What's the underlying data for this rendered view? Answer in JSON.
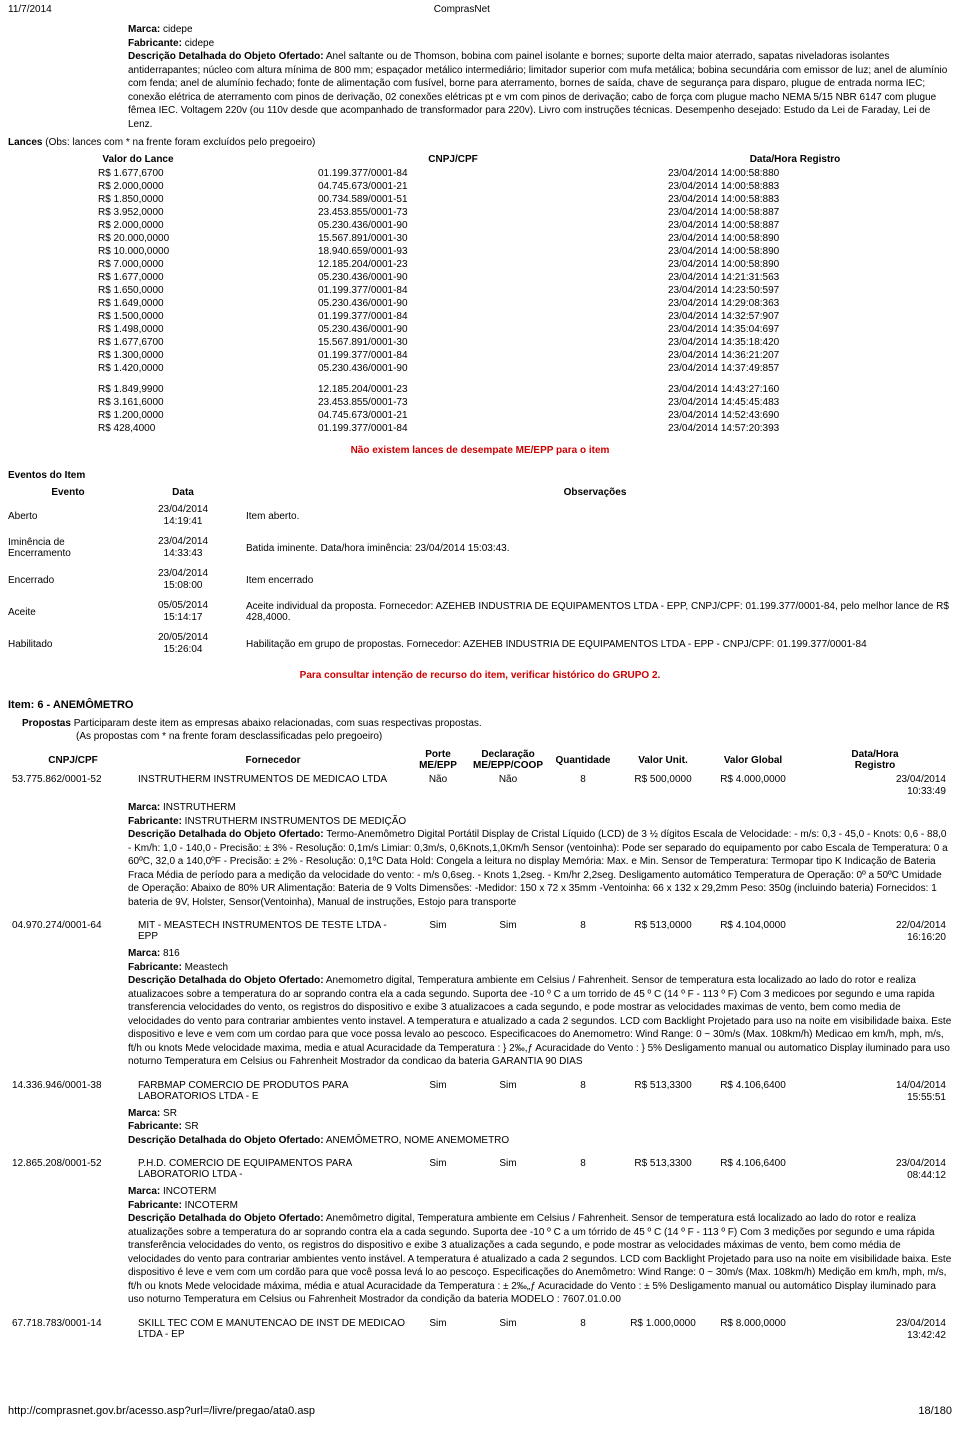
{
  "header": {
    "date": "11/7/2014",
    "title": "ComprasNet"
  },
  "marca_top": {
    "marca_lbl": "Marca:",
    "marca_val": "cidepe",
    "fab_lbl": "Fabricante:",
    "fab_val": "cidepe",
    "desc_lbl": "Descrição Detalhada do Objeto Ofertado:",
    "desc_val": "Anel saltante ou de Thomson, bobina com painel isolante e bornes; suporte delta maior aterrado, sapatas niveladoras isolantes antiderrapantes; núcleo com altura mínima de 800 mm; espaçador metálico intermediário; limitador superior com mufa metálica; bobina secundária com emissor de luz; anel de alumínio com fenda; anel de alumínio fechado; fonte de alimentação com fusível, borne para aterramento, bornes de saída, chave de segurança para disparo, plugue de entrada norma IEC; conexão elétrica de aterramento com pinos de derivação, 02 conexões elétricas pt e vm com pinos de derivação; cabo de força com plugue macho NEMA 5/15 NBR 6147 com plugue fêmea IEC. Voltagem 220v (ou 110v desde que acompanhado de transformador para 220v). Livro com instruções técnicas. Desempenho desejado: Estudo da Lei de Faraday, Lei de Lenz."
  },
  "lances": {
    "title": "Lances ",
    "sub": "(Obs: lances com * na frente foram excluídos pelo pregoeiro)",
    "hdr_valor": "Valor do Lance",
    "hdr_cnpj": "CNPJ/CPF",
    "hdr_dh": "Data/Hora Registro",
    "rows": [
      {
        "v": "R$ 1.677,6700",
        "c": "01.199.377/0001-84",
        "d": "23/04/2014 14:00:58:880"
      },
      {
        "v": "R$ 2.000,0000",
        "c": "04.745.673/0001-21",
        "d": "23/04/2014 14:00:58:883"
      },
      {
        "v": "R$ 1.850,0000",
        "c": "00.734.589/0001-51",
        "d": "23/04/2014 14:00:58:883"
      },
      {
        "v": "R$ 3.952,0000",
        "c": "23.453.855/0001-73",
        "d": "23/04/2014 14:00:58:887"
      },
      {
        "v": "R$ 2.000,0000",
        "c": "05.230.436/0001-90",
        "d": "23/04/2014 14:00:58:887"
      },
      {
        "v": "R$ 20.000,0000",
        "c": "15.567.891/0001-30",
        "d": "23/04/2014 14:00:58:890"
      },
      {
        "v": "R$ 10.000,0000",
        "c": "18.940.659/0001-93",
        "d": "23/04/2014 14:00:58:890"
      },
      {
        "v": "R$ 7.000,0000",
        "c": "12.185.204/0001-23",
        "d": "23/04/2014 14:00:58:890"
      },
      {
        "v": "R$ 1.677,0000",
        "c": "05.230.436/0001-90",
        "d": "23/04/2014 14:21:31:563"
      },
      {
        "v": "R$ 1.650,0000",
        "c": "01.199.377/0001-84",
        "d": "23/04/2014 14:23:50:597"
      },
      {
        "v": "R$ 1.649,0000",
        "c": "05.230.436/0001-90",
        "d": "23/04/2014 14:29:08:363"
      },
      {
        "v": "R$ 1.500,0000",
        "c": "01.199.377/0001-84",
        "d": "23/04/2014 14:32:57:907"
      },
      {
        "v": "R$ 1.498,0000",
        "c": "05.230.436/0001-90",
        "d": "23/04/2014 14:35:04:697"
      },
      {
        "v": "R$ 1.677,6700",
        "c": "15.567.891/0001-30",
        "d": "23/04/2014 14:35:18:420"
      },
      {
        "v": "R$ 1.300,0000",
        "c": "01.199.377/0001-84",
        "d": "23/04/2014 14:36:21:207"
      },
      {
        "v": "R$ 1.420,0000",
        "c": "05.230.436/0001-90",
        "d": "23/04/2014 14:37:49:857"
      }
    ],
    "rows2": [
      {
        "v": "R$ 1.849,9900",
        "c": "12.185.204/0001-23",
        "d": "23/04/2014 14:43:27:160"
      },
      {
        "v": "R$ 3.161,6000",
        "c": "23.453.855/0001-73",
        "d": "23/04/2014 14:45:45:483"
      },
      {
        "v": "R$ 1.200,0000",
        "c": "04.745.673/0001-21",
        "d": "23/04/2014 14:52:43:690"
      },
      {
        "v": "R$ 428,4000",
        "c": "01.199.377/0001-84",
        "d": "23/04/2014 14:57:20:393"
      }
    ]
  },
  "no_desempate": "Não existem lances de desempate ME/EPP para o item",
  "eventos": {
    "title": "Eventos do Item",
    "hdr_ev": "Evento",
    "hdr_dt": "Data",
    "hdr_obs": "Observações",
    "rows": [
      {
        "e": "Aberto",
        "d": "23/04/2014 14:19:41",
        "o": "Item aberto."
      },
      {
        "e": "Iminência de Encerramento",
        "d": "23/04/2014 14:33:43",
        "o": "Batida iminente. Data/hora iminência: 23/04/2014 15:03:43."
      },
      {
        "e": "Encerrado",
        "d": "23/04/2014 15:08:00",
        "o": "Item encerrado"
      },
      {
        "e": "Aceite",
        "d": "05/05/2014 15:14:17",
        "o": "Aceite individual da proposta. Fornecedor: AZEHEB INDUSTRIA DE EQUIPAMENTOS LTDA - EPP, CNPJ/CPF: 01.199.377/0001-84, pelo melhor lance de R$ 428,4000."
      },
      {
        "e": "Habilitado",
        "d": "20/05/2014 15:26:04",
        "o": "Habilitação em grupo de propostas. Fornecedor: AZEHEB INDUSTRIA DE EQUIPAMENTOS LTDA - EPP - CNPJ/CPF: 01.199.377/0001-84"
      }
    ]
  },
  "red_historico": "Para consultar intenção de recurso do item, verificar histórico do GRUPO 2.",
  "item6": {
    "title": "Item: 6 - ANEMÔMETRO",
    "prop_lbl": "Propostas",
    "prop_txt1": "Participaram deste item as empresas abaixo relacionadas, com suas respectivas propostas.",
    "prop_txt2": "(As propostas com * na frente foram desclassificadas pelo pregoeiro)",
    "hdr": {
      "cnpj": "CNPJ/CPF",
      "forn": "Fornecedor",
      "porte": "Porte ME/EPP",
      "decl": "Declaração ME/EPP/COOP",
      "qtd": "Quantidade",
      "vu": "Valor Unit.",
      "vg": "Valor Global",
      "dh": "Data/Hora Registro"
    },
    "props": [
      {
        "cnpj": "53.775.862/0001-52",
        "forn": "INSTRUTHERM INSTRUMENTOS DE MEDICAO LTDA",
        "porte": "Não",
        "decl": "Não",
        "qtd": "8",
        "vu": "R$ 500,0000",
        "vg": "R$ 4.000,0000",
        "dh": "23/04/2014 10:33:49",
        "marca": "INSTRUTHERM",
        "fab": "INSTRUTHERM INSTRUMENTOS DE MEDIÇÃO",
        "desc": "Termo-Anemômetro Digital Portátil Display de Cristal Líquido (LCD) de 3 ½ dígitos Escala de Velocidade: - m/s: 0,3 - 45,0 - Knots: 0,6 - 88,0 - Km/h: 1,0 - 140,0 - Precisão: ± 3% - Resolução: 0,1m/s Limiar: 0,3m/s, 0,6Knots,1,0Km/h Sensor (ventoinha): Pode ser separado do equipamento por cabo Escala de Temperatura: 0 a 60ºC, 32,0 a 140,0ºF - Precisão: ± 2% - Resolução: 0,1ºC Data Hold: Congela a leitura no display Memória: Max. e Min. Sensor de Temperatura: Termopar tipo K Indicação de Bateria Fraca Média de período para a medição da velocidade do vento: - m/s 0,6seg. - Knots 1,2seg. - Km/hr 2,2seg. Desligamento automático Temperatura de Operação: 0º a 50ºC Umidade de Operação: Abaixo de 80% UR Alimentação: Bateria de 9 Volts Dimensões: -Medidor: 150 x 72 x 35mm -Ventoinha: 66 x 132 x 29,2mm Peso: 350g (incluindo bateria) Fornecidos: 1 bateria de 9V, Holster, Sensor(Ventoinha), Manual de instruções, Estojo para transporte"
      },
      {
        "cnpj": "04.970.274/0001-64",
        "forn": "MIT - MEASTECH INSTRUMENTOS DE TESTE LTDA - EPP",
        "porte": "Sim",
        "decl": "Sim",
        "qtd": "8",
        "vu": "R$ 513,0000",
        "vg": "R$ 4.104,0000",
        "dh": "22/04/2014 16:16:20",
        "marca": "816",
        "fab": "Meastech",
        "desc": "Anemometro digital, Temperatura ambiente em Celsius / Fahrenheit. Sensor de temperatura esta localizado ao lado do rotor e realiza atualizacoes sobre a temperatura do ar soprando contra ela a cada segundo. Suporta dee -10 º C a um torrido de 45 º C (14 º F - 113 º F) Com 3 medicoes por segundo e uma rapida transferencia velocidades do vento, os registros do dispositivo e exibe 3 atualizacoes a cada segundo, e pode mostrar as velocidades maximas de vento, bem como media de velocidades do vento para contrariar ambientes vento instavel. A temperatura e atualizado a cada 2 segundos. LCD com Backlight Projetado para uso na noite em visibilidade baixa. Este dispositivo e leve e vem com um cordao para que voce possa levalo ao pescoco. Especificacoes do Anemometro: Wind Range: 0 ~ 30m/s (Max. 108km/h) Medicao em km/h, mph, m/s, ft/h ou knots Mede velocidade maxima, media e atual Acuracidade da Temperatura : } 2‰,ƒ Acuracidade do Vento : } 5% Desligamento manual ou automatico Display iluminado para uso noturno Temperatura em Celsius ou Fahrenheit Mostrador da condicao da bateria GARANTIA 90 DIAS"
      },
      {
        "cnpj": "14.336.946/0001-38",
        "forn": "FARBMAP COMERCIO DE PRODUTOS PARA LABORATORIOS LTDA - E",
        "porte": "Sim",
        "decl": "Sim",
        "qtd": "8",
        "vu": "R$ 513,3300",
        "vg": "R$ 4.106,6400",
        "dh": "14/04/2014 15:55:51",
        "marca": "SR",
        "fab": "SR",
        "desc": "ANEMÔMETRO, NOME ANEMOMETRO"
      },
      {
        "cnpj": "12.865.208/0001-52",
        "forn": "P.H.D. COMERCIO DE EQUIPAMENTOS PARA LABORATORIO LTDA -",
        "porte": "Sim",
        "decl": "Sim",
        "qtd": "8",
        "vu": "R$ 513,3300",
        "vg": "R$ 4.106,6400",
        "dh": "23/04/2014 08:44:12",
        "marca": "INCOTERM",
        "fab": "INCOTERM",
        "desc": "Anemômetro digital, Temperatura ambiente em Celsius / Fahrenheit. Sensor de temperatura está localizado ao lado do rotor e realiza atualizações sobre a temperatura do ar soprando contra ela a cada segundo. Suporta dee -10 º C a um tórrido de 45 º C (14 º F - 113 º F) Com 3 medições por segundo e uma rápida transferência velocidades do vento, os registros do dispositivo e exibe 3 atualizações a cada segundo, e pode mostrar as velocidades máximas de vento, bem como média de velocidades do vento para contrariar ambientes vento instável. A temperatura é atualizado a cada 2 segundos. LCD com Backlight Projetado para uso na noite em visibilidade baixa. Este dispositivo é leve e vem com um cordão para que você possa levá lo ao pescoço. Especificações do Anemômetro: Wind Range: 0 ~ 30m/s (Max. 108km/h) Medição em km/h, mph, m/s, ft/h ou knots Mede velocidade máxima, média e atual Acuracidade da Temperatura : ± 2‰„ƒ Acuracidade do Vento : ± 5% Desligamento manual ou automático Display iluminado para uso noturno Temperatura em Celsius ou Fahrenheit Mostrador da condição da bateria MODELO : 7607.01.0.00"
      },
      {
        "cnpj": "67.718.783/0001-14",
        "forn": "SKILL TEC COM E MANUTENCAO DE INST DE MEDICAO LTDA - EP",
        "porte": "Sim",
        "decl": "Sim",
        "qtd": "8",
        "vu": "R$ 1.000,0000",
        "vg": "R$ 8.000,0000",
        "dh": "23/04/2014 13:42:42"
      }
    ]
  },
  "labels": {
    "marca": "Marca:",
    "fab": "Fabricante:",
    "desc": "Descrição Detalhada do Objeto Ofertado:"
  },
  "footer": {
    "url": "http://comprasnet.gov.br/acesso.asp?url=/livre/pregao/ata0.asp",
    "page": "18/180"
  }
}
